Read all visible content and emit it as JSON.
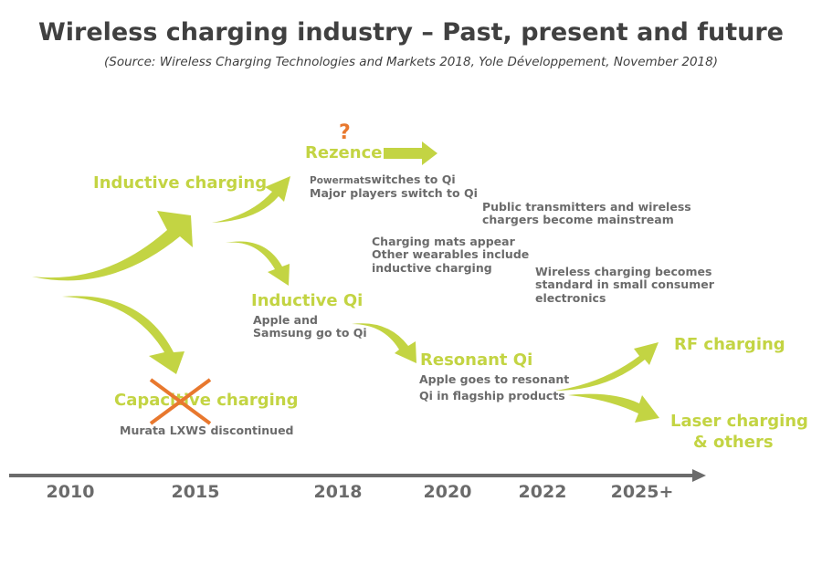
{
  "title": "Wireless charging industry – Past, present and future",
  "subtitle": "(Source: Wireless Charging Technologies and Markets 2018, Yole Développement, November 2018)",
  "colors": {
    "accent_green": "#c3d443",
    "text_gray": "#6b6b6b",
    "cross_orange": "#e8782e",
    "timeline": "#6b6b6b"
  },
  "technologies": {
    "inductive_charging": "Inductive charging",
    "rezence": "Rezence",
    "rezence_mark": "?",
    "inductive_qi": "Inductive Qi",
    "capacitive_charging": "Capacitive charging",
    "resonant_qi": "Resonant Qi",
    "rf_charging": "RF charging",
    "laser_charging_1": "Laser charging",
    "laser_charging_2": "& others"
  },
  "notes": {
    "powermat_a": "Powermat",
    "powermat_b": "switches to Qi",
    "major_players": "Major players switch to Qi",
    "public_1": "Public transmitters and wireless",
    "public_2": "chargers become mainstream",
    "mats_1": "Charging mats appear",
    "mats_2": "Other wearables include",
    "mats_3": "inductive charging",
    "standard_1": "Wireless charging becomes",
    "standard_2": "standard in small consumer",
    "standard_3": "electronics",
    "apple_1": "Apple and",
    "apple_2": "Samsung go to Qi",
    "resonant_1": "Apple goes to resonant",
    "resonant_2": "Qi in flagship products",
    "murata": "Murata LXWS discontinued"
  },
  "timeline": {
    "years": [
      "2010",
      "2015",
      "2018",
      "2020",
      "2022",
      "2025+"
    ]
  }
}
